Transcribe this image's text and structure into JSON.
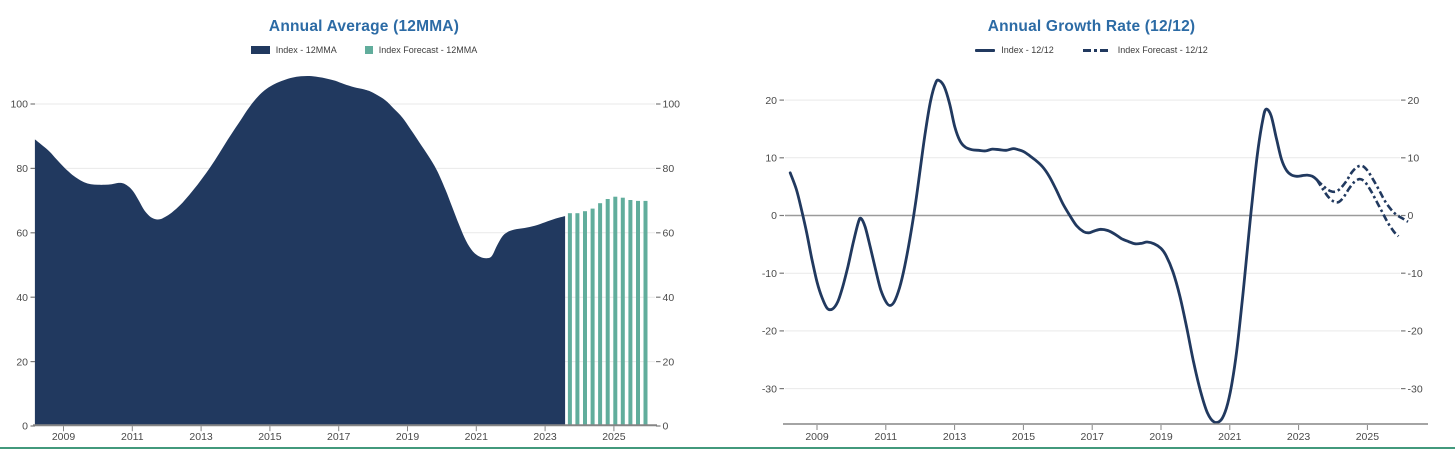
{
  "page": {
    "background": "#ffffff",
    "bottom_border_color": "#42997c",
    "grid_color": "#e9e9e9",
    "zero_line_color": "#9b9b9b",
    "axis_color": "#858585",
    "tick_text_color": "#4a4a4a"
  },
  "chart_data": [
    {
      "type": "area",
      "title": "Annual Average (12MMA)",
      "title_color": "#2c6ba5",
      "xlabel": "",
      "ylabel": "",
      "legend_position": "top",
      "grid": true,
      "xticks": [
        2009,
        2011,
        2013,
        2015,
        2017,
        2019,
        2021,
        2023,
        2025
      ],
      "yticks": [
        0,
        20,
        40,
        60,
        80,
        100
      ],
      "xlim": [
        2008.1,
        2026.3
      ],
      "ylim": [
        0,
        112
      ],
      "legend": [
        {
          "label": "Index - 12MMA",
          "color": "#21395f",
          "style": "area"
        },
        {
          "label": "Index Forecast - 12MMA",
          "color": "#61ad9c",
          "style": "bars"
        }
      ],
      "series": [
        {
          "name": "Index - 12MMA",
          "style": "area",
          "color": "#21395f",
          "points": [
            [
              2008.17,
              89
            ],
            [
              2008.4,
              87
            ],
            [
              2008.6,
              85.2
            ],
            [
              2008.8,
              82.8
            ],
            [
              2009.0,
              80.5
            ],
            [
              2009.2,
              78.5
            ],
            [
              2009.4,
              76.9
            ],
            [
              2009.6,
              75.7
            ],
            [
              2009.8,
              75.1
            ],
            [
              2010.0,
              74.9
            ],
            [
              2010.2,
              74.9
            ],
            [
              2010.4,
              75.1
            ],
            [
              2010.6,
              75.5
            ],
            [
              2010.75,
              75.3
            ],
            [
              2010.9,
              74.3
            ],
            [
              2011.05,
              72.5
            ],
            [
              2011.2,
              69.8
            ],
            [
              2011.35,
              67
            ],
            [
              2011.5,
              65.2
            ],
            [
              2011.65,
              64.3
            ],
            [
              2011.8,
              64.2
            ],
            [
              2011.95,
              64.9
            ],
            [
              2012.15,
              66.3
            ],
            [
              2012.4,
              68.7
            ],
            [
              2012.65,
              71.7
            ],
            [
              2012.9,
              75
            ],
            [
              2013.15,
              78.6
            ],
            [
              2013.4,
              82.5
            ],
            [
              2013.65,
              86.8
            ],
            [
              2013.9,
              91
            ],
            [
              2014.15,
              95
            ],
            [
              2014.4,
              99
            ],
            [
              2014.65,
              102.3
            ],
            [
              2014.9,
              104.7
            ],
            [
              2015.15,
              106.3
            ],
            [
              2015.4,
              107.4
            ],
            [
              2015.65,
              108.2
            ],
            [
              2015.9,
              108.6
            ],
            [
              2016.15,
              108.7
            ],
            [
              2016.4,
              108.4
            ],
            [
              2016.65,
              107.9
            ],
            [
              2016.9,
              107.2
            ],
            [
              2017.15,
              106.2
            ],
            [
              2017.45,
              105.2
            ],
            [
              2017.75,
              104.5
            ],
            [
              2018.0,
              103.5
            ],
            [
              2018.35,
              101.2
            ],
            [
              2018.6,
              98.6
            ],
            [
              2018.85,
              95.8
            ],
            [
              2019.1,
              92
            ],
            [
              2019.35,
              88
            ],
            [
              2019.6,
              84
            ],
            [
              2019.85,
              79.5
            ],
            [
              2020.1,
              73.5
            ],
            [
              2020.3,
              68
            ],
            [
              2020.5,
              62.5
            ],
            [
              2020.7,
              57.5
            ],
            [
              2020.9,
              54.2
            ],
            [
              2021.1,
              52.6
            ],
            [
              2021.3,
              52.1
            ],
            [
              2021.45,
              52.8
            ],
            [
              2021.6,
              56
            ],
            [
              2021.75,
              58.8
            ],
            [
              2021.9,
              60.2
            ],
            [
              2022.1,
              61
            ],
            [
              2022.4,
              61.5
            ],
            [
              2022.7,
              62.2
            ],
            [
              2023.0,
              63.3
            ],
            [
              2023.3,
              64.4
            ],
            [
              2023.58,
              65.2
            ]
          ]
        },
        {
          "name": "Index Forecast - 12MMA",
          "style": "bars",
          "color": "#61ad9c",
          "points": [
            [
              2023.72,
              66.1
            ],
            [
              2023.94,
              66.1
            ],
            [
              2024.16,
              66.7
            ],
            [
              2024.38,
              67.5
            ],
            [
              2024.6,
              69.2
            ],
            [
              2024.82,
              70.5
            ],
            [
              2025.04,
              71.2
            ],
            [
              2025.26,
              70.9
            ],
            [
              2025.48,
              70.2
            ],
            [
              2025.7,
              69.9
            ],
            [
              2025.92,
              69.9
            ]
          ]
        }
      ]
    },
    {
      "type": "line",
      "title": "Annual Growth Rate (12/12)",
      "title_color": "#2c6ba5",
      "xlabel": "",
      "ylabel": "",
      "legend_position": "top",
      "grid": true,
      "xticks": [
        2009,
        2011,
        2013,
        2015,
        2017,
        2019,
        2021,
        2023,
        2025
      ],
      "yticks": [
        20,
        10,
        0,
        -10,
        -20,
        -30
      ],
      "xlim": [
        2008.1,
        2026.3
      ],
      "ylim": [
        -36,
        25
      ],
      "legend": [
        {
          "label": "Index - 12/12",
          "color": "#21395f",
          "style": "solid"
        },
        {
          "label": "Index Forecast - 12/12",
          "color": "#21395f",
          "style": "dashdot"
        }
      ],
      "series": [
        {
          "name": "Index - 12/12",
          "style": "solid",
          "color": "#21395f",
          "points": [
            [
              2008.22,
              7.4
            ],
            [
              2008.4,
              4.5
            ],
            [
              2008.55,
              1
            ],
            [
              2008.7,
              -3
            ],
            [
              2008.85,
              -7.5
            ],
            [
              2009.0,
              -11.5
            ],
            [
              2009.15,
              -14.3
            ],
            [
              2009.3,
              -16.1
            ],
            [
              2009.45,
              -16.2
            ],
            [
              2009.6,
              -15
            ],
            [
              2009.75,
              -12.3
            ],
            [
              2009.9,
              -8.8
            ],
            [
              2010.05,
              -4.8
            ],
            [
              2010.2,
              -1.2
            ],
            [
              2010.28,
              -0.5
            ],
            [
              2010.4,
              -2
            ],
            [
              2010.55,
              -5.5
            ],
            [
              2010.7,
              -9.3
            ],
            [
              2010.85,
              -12.8
            ],
            [
              2011.0,
              -14.9
            ],
            [
              2011.12,
              -15.6
            ],
            [
              2011.25,
              -14.9
            ],
            [
              2011.4,
              -12.5
            ],
            [
              2011.55,
              -8.8
            ],
            [
              2011.7,
              -4
            ],
            [
              2011.85,
              1.5
            ],
            [
              2012.0,
              8
            ],
            [
              2012.15,
              14.5
            ],
            [
              2012.3,
              19.8
            ],
            [
              2012.45,
              23
            ],
            [
              2012.55,
              23.4
            ],
            [
              2012.7,
              22.3
            ],
            [
              2012.85,
              19.5
            ],
            [
              2013.0,
              15.5
            ],
            [
              2013.15,
              13
            ],
            [
              2013.3,
              11.9
            ],
            [
              2013.5,
              11.4
            ],
            [
              2013.7,
              11.3
            ],
            [
              2013.9,
              11.2
            ],
            [
              2014.1,
              11.5
            ],
            [
              2014.3,
              11.4
            ],
            [
              2014.5,
              11.3
            ],
            [
              2014.7,
              11.6
            ],
            [
              2014.85,
              11.4
            ],
            [
              2015.0,
              11.1
            ],
            [
              2015.15,
              10.5
            ],
            [
              2015.35,
              9.6
            ],
            [
              2015.55,
              8.5
            ],
            [
              2015.75,
              6.8
            ],
            [
              2015.95,
              4.5
            ],
            [
              2016.15,
              2
            ],
            [
              2016.35,
              0
            ],
            [
              2016.55,
              -1.8
            ],
            [
              2016.75,
              -2.8
            ],
            [
              2016.9,
              -3
            ],
            [
              2017.05,
              -2.7
            ],
            [
              2017.25,
              -2.4
            ],
            [
              2017.45,
              -2.6
            ],
            [
              2017.65,
              -3.2
            ],
            [
              2017.85,
              -4
            ],
            [
              2018.05,
              -4.5
            ],
            [
              2018.25,
              -4.9
            ],
            [
              2018.45,
              -4.8
            ],
            [
              2018.6,
              -4.6
            ],
            [
              2018.8,
              -4.9
            ],
            [
              2019.0,
              -5.7
            ],
            [
              2019.15,
              -7
            ],
            [
              2019.35,
              -9.8
            ],
            [
              2019.55,
              -14
            ],
            [
              2019.75,
              -19.5
            ],
            [
              2019.95,
              -25.5
            ],
            [
              2020.15,
              -30.5
            ],
            [
              2020.35,
              -34.2
            ],
            [
              2020.55,
              -35.8
            ],
            [
              2020.75,
              -35.4
            ],
            [
              2020.9,
              -33.4
            ],
            [
              2021.05,
              -29.5
            ],
            [
              2021.2,
              -23.5
            ],
            [
              2021.35,
              -15.5
            ],
            [
              2021.5,
              -6.5
            ],
            [
              2021.65,
              2.5
            ],
            [
              2021.8,
              10.5
            ],
            [
              2021.95,
              16.3
            ],
            [
              2022.05,
              18.4
            ],
            [
              2022.2,
              17.3
            ],
            [
              2022.35,
              13.5
            ],
            [
              2022.5,
              9.8
            ],
            [
              2022.65,
              7.8
            ],
            [
              2022.8,
              7
            ],
            [
              2022.95,
              6.8
            ],
            [
              2023.1,
              6.9
            ],
            [
              2023.25,
              7
            ],
            [
              2023.4,
              6.8
            ],
            [
              2023.53,
              6.2
            ]
          ]
        },
        {
          "name": "Index Forecast - 12/12",
          "style": "dashdot",
          "color": "#21395f",
          "branches": [
            [
              [
                2023.53,
                6.2
              ],
              [
                2023.7,
                5.2
              ],
              [
                2023.87,
                4.4
              ],
              [
                2024.04,
                4.1
              ],
              [
                2024.2,
                4.6
              ],
              [
                2024.38,
                5.9
              ],
              [
                2024.55,
                7.5
              ],
              [
                2024.7,
                8.4
              ],
              [
                2024.85,
                8.6
              ],
              [
                2025.0,
                7.8
              ],
              [
                2025.17,
                6.2
              ],
              [
                2025.34,
                4.4
              ],
              [
                2025.5,
                2.6
              ],
              [
                2025.68,
                1.1
              ],
              [
                2025.85,
                0.1
              ],
              [
                2026.02,
                -0.5
              ],
              [
                2026.18,
                -1.1
              ]
            ],
            [
              [
                2023.53,
                6.2
              ],
              [
                2023.68,
                4.8
              ],
              [
                2023.84,
                3.4
              ],
              [
                2024.0,
                2.5
              ],
              [
                2024.15,
                2.3
              ],
              [
                2024.3,
                3.1
              ],
              [
                2024.47,
                4.7
              ],
              [
                2024.62,
                5.8
              ],
              [
                2024.78,
                6.3
              ],
              [
                2024.93,
                5.8
              ],
              [
                2025.1,
                4.3
              ],
              [
                2025.27,
                2.4
              ],
              [
                2025.43,
                0.6
              ],
              [
                2025.6,
                -1.3
              ],
              [
                2025.77,
                -2.8
              ],
              [
                2025.9,
                -3.6
              ]
            ]
          ]
        }
      ]
    }
  ]
}
